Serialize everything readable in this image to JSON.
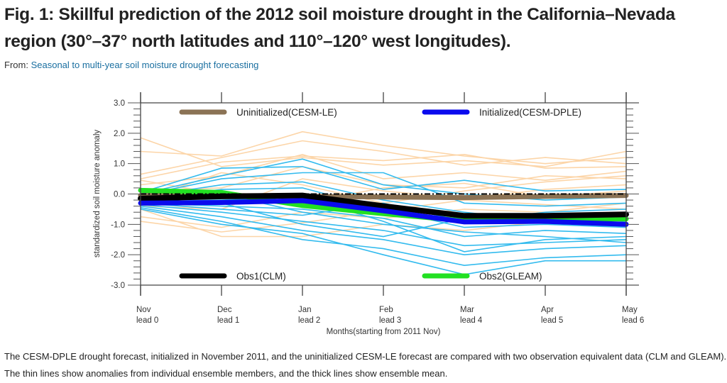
{
  "figure": {
    "title": "Fig. 1: Skillful prediction of the 2012 soil moisture drought in the California–Nevada region (30°–37° north latitudes and 110°–120° west longitudes).",
    "from_label": "From:",
    "from_link": "Seasonal to multi-year soil moisture drought forecasting",
    "caption": "The CESM-DPLE drought forecast, initialized in November 2011, and the uninitialized CESM-LE forecast are compared with two observation equivalent data (CLM and GLEAM). The thin lines show anomalies from individual ensemble members, and the thick lines show ensemble mean."
  },
  "chart_data": {
    "type": "line",
    "title": "",
    "xlabel": "Months(starting from 2011 Nov)",
    "ylabel": "standardized soil moisture anomaly",
    "categories": [
      "Nov\nlead 0",
      "Dec\nlead 1",
      "Jan\nlead 2",
      "Feb\nlead 3",
      "Mar\nlead 4",
      "Apr\nlead 5",
      "May\nlead 6"
    ],
    "x_months": [
      "Nov",
      "Dec",
      "Jan",
      "Feb",
      "Mar",
      "Apr",
      "May"
    ],
    "x_leads": [
      "lead 0",
      "lead 1",
      "lead 2",
      "lead 3",
      "lead 4",
      "lead 5",
      "lead 6"
    ],
    "ylim": [
      -3.0,
      3.0
    ],
    "yticks": [
      "3.0",
      "2.0",
      "1.0",
      "0.0",
      "-1.0",
      "-2.0",
      "-3.0"
    ],
    "yticks_values": [
      3.0,
      2.0,
      1.0,
      0.0,
      -1.0,
      -2.0,
      -3.0
    ],
    "grid": false,
    "legend": [
      {
        "name": "Uninitialized(CESM-LE)",
        "color": "#8b7355",
        "placement": "top-left"
      },
      {
        "name": "Initialized(CESM-DPLE)",
        "color": "#0a0aee",
        "placement": "top-right"
      },
      {
        "name": "Obs1(CLM)",
        "color": "#000000",
        "placement": "bottom-left"
      },
      {
        "name": "Obs2(GLEAM)",
        "color": "#22e022",
        "placement": "bottom-right"
      }
    ],
    "series": [
      {
        "name": "Uninitialized(CESM-LE) ensemble mean",
        "color": "#8b7355",
        "values": [
          -0.05,
          -0.05,
          -0.07,
          -0.1,
          -0.12,
          -0.08,
          -0.05
        ]
      },
      {
        "name": "Obs1(CLM)",
        "color": "#000000",
        "values": [
          -0.15,
          -0.08,
          -0.05,
          -0.4,
          -0.72,
          -0.72,
          -0.67
        ]
      },
      {
        "name": "Obs2(GLEAM)",
        "color": "#22e022",
        "values": [
          0.12,
          0.05,
          -0.38,
          -0.65,
          -0.88,
          -0.82,
          -0.82
        ]
      },
      {
        "name": "Initialized(CESM-DPLE) ensemble mean",
        "color": "#0a0aee",
        "values": [
          -0.3,
          -0.28,
          -0.22,
          -0.55,
          -0.92,
          -0.9,
          -1.0
        ]
      },
      {
        "name": "zero reference (dash-dot)",
        "color": "#000000",
        "values": [
          0,
          0,
          0,
          0,
          0,
          0,
          0
        ]
      }
    ],
    "ensemble_members": {
      "uninitialized_color": "#fcd5a8",
      "initialized_color": "#33bbee",
      "uninitialized": [
        [
          1.85,
          0.9,
          1.2,
          0.95,
          1.1,
          0.9,
          1.4
        ],
        [
          1.4,
          1.25,
          2.05,
          1.6,
          1.25,
          1.0,
          1.2
        ],
        [
          0.65,
          1.2,
          1.75,
          1.4,
          0.95,
          1.2,
          1.0
        ],
        [
          0.5,
          1.05,
          1.25,
          1.1,
          1.3,
          0.85,
          0.9
        ],
        [
          0.3,
          0.6,
          1.3,
          0.5,
          0.7,
          0.45,
          0.75
        ],
        [
          0.1,
          0.2,
          0.9,
          0.3,
          0.2,
          0.6,
          0.5
        ],
        [
          -0.4,
          -0.5,
          0.5,
          0.1,
          -0.15,
          0.15,
          0.3
        ],
        [
          -0.75,
          -1.1,
          -0.6,
          -0.8,
          -0.5,
          -0.6,
          -0.3
        ],
        [
          -0.9,
          -1.25,
          -0.95,
          -0.55,
          -0.2,
          -0.35,
          -0.5
        ],
        [
          -0.5,
          -1.4,
          -1.4,
          -1.0,
          -1.2,
          -0.9,
          -1.1
        ],
        [
          0.45,
          0.0,
          -0.3,
          0.2,
          0.35,
          -0.1,
          0.1
        ],
        [
          -0.2,
          0.7,
          0.3,
          -0.3,
          0.1,
          0.4,
          0.6
        ]
      ],
      "initialized": [
        [
          0.05,
          0.85,
          0.9,
          0.15,
          0.45,
          0.1,
          0.15
        ],
        [
          0.0,
          0.6,
          1.15,
          0.3,
          0.0,
          -0.2,
          -0.1
        ],
        [
          -0.05,
          0.5,
          0.7,
          0.7,
          -0.3,
          -0.4,
          -0.3
        ],
        [
          -0.1,
          0.3,
          0.4,
          -0.2,
          -0.6,
          -0.9,
          -0.8
        ],
        [
          -0.2,
          0.15,
          0.2,
          -0.5,
          -1.1,
          -1.0,
          -1.1
        ],
        [
          -0.3,
          -0.4,
          -0.5,
          -0.8,
          -1.4,
          -1.2,
          -1.3
        ],
        [
          -0.35,
          -0.6,
          -0.9,
          -1.2,
          -1.7,
          -1.6,
          -1.5
        ],
        [
          -0.4,
          -0.75,
          -1.2,
          -1.5,
          -2.0,
          -1.8,
          -1.7
        ],
        [
          -0.45,
          -0.9,
          -1.5,
          -1.8,
          -2.35,
          -2.1,
          -2.0
        ],
        [
          -0.5,
          -1.0,
          -1.3,
          -2.0,
          -2.65,
          -2.2,
          -2.2
        ],
        [
          -0.25,
          -0.2,
          -0.1,
          -0.9,
          -1.9,
          -1.5,
          -1.4
        ],
        [
          -0.15,
          0.0,
          -0.6,
          -1.0,
          -1.25,
          -1.4,
          -1.6
        ],
        [
          -0.3,
          -0.5,
          -0.7,
          -0.3,
          -0.9,
          -0.6,
          -0.5
        ],
        [
          -0.2,
          -0.3,
          -1.0,
          -1.4,
          -0.8,
          -0.7,
          -0.9
        ]
      ]
    }
  }
}
